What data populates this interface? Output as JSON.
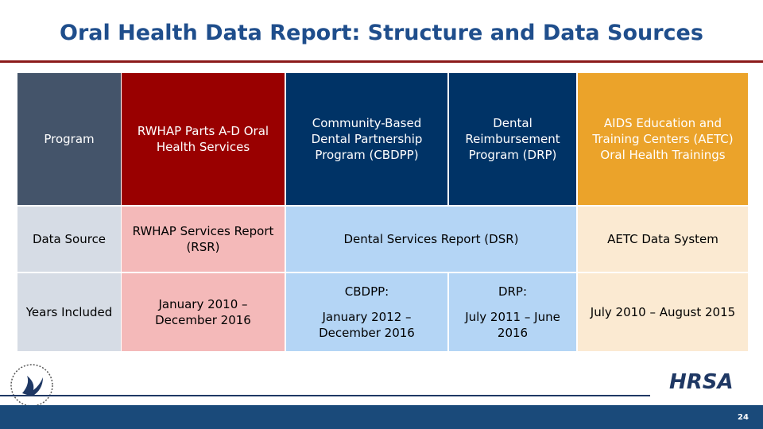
{
  "header": {
    "title": "Oral Health Data Report: Structure and Data Sources"
  },
  "table": {
    "header_row": [
      "Program",
      "RWHAP Parts A-D Oral Health Services",
      "Community-Based Dental Partnership Program (CBDPP)",
      "Dental Reimbursement Program (DRP)",
      "AIDS Education and Training Centers (AETC) Oral Health Trainings"
    ],
    "rows": [
      [
        "Data Source",
        "RWHAP Services Report (RSR)",
        "Dental Services Report (DSR)",
        "AETC Data System"
      ],
      [
        "Years Included",
        "January 2010 – December 2016",
        {
          "label": "CBDPP:",
          "text": "January 2012 – December 2016"
        },
        {
          "label": "DRP:",
          "text": "July 2011 – June 2016"
        },
        "July 2010 – August 2015"
      ]
    ]
  },
  "footer": {
    "logo": "HRSA",
    "page_number": "24"
  }
}
